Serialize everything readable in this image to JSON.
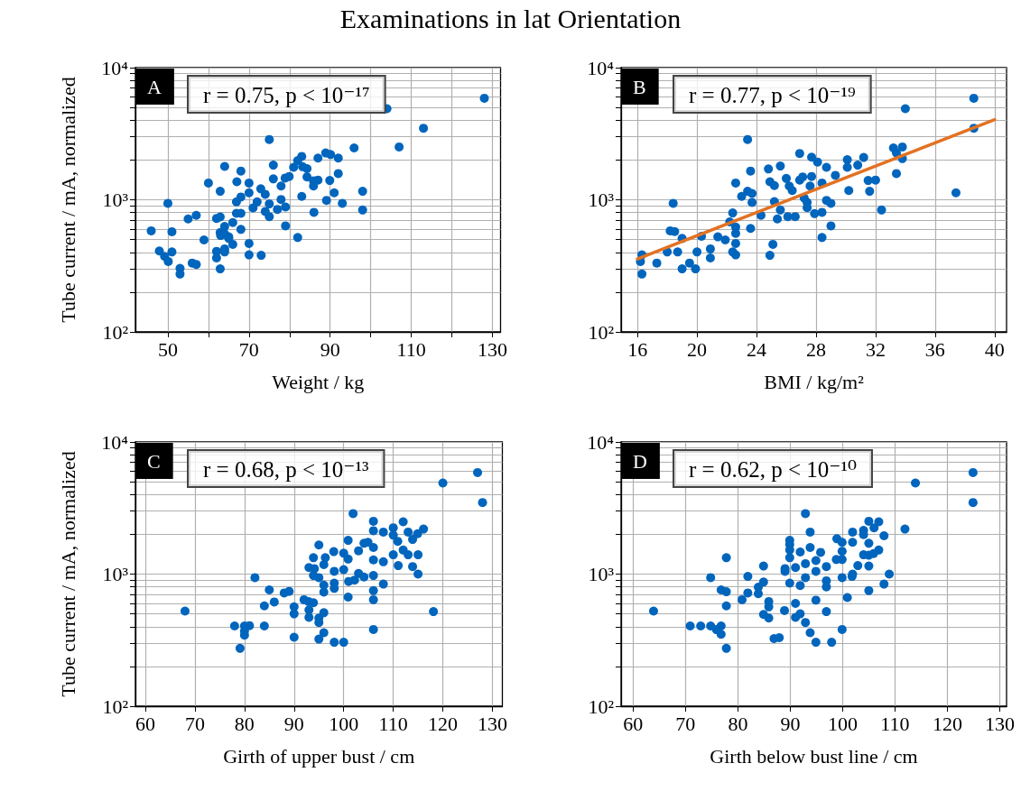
{
  "chart_data": [
    {
      "type": "scatter",
      "title": "Examinations in lat Orientation",
      "xlabel": "Weight / kg",
      "ylabel": "Tube current / mA, normalized",
      "annotations": [
        "A",
        "r = 0.75, p < 10⁻¹⁷"
      ],
      "x": [
        128,
        104,
        113,
        75,
        95.9,
        107,
        88.9,
        90.1,
        87,
        92,
        83,
        82,
        76,
        64,
        81,
        68,
        84.3,
        83.2,
        92,
        79.9,
        78.9,
        84.3,
        76,
        60,
        67,
        70,
        85.9,
        87,
        89.9,
        77.9,
        85.9,
        72.9,
        62.9,
        70,
        74,
        68,
        83,
        91,
        98,
        50,
        66.9,
        77.9,
        72,
        89.1,
        93,
        75,
        71,
        74,
        77,
        79,
        66.9,
        68,
        75,
        86,
        98,
        57,
        55,
        62,
        62.9,
        66,
        64,
        79,
        68,
        45.9,
        51,
        62.9,
        64,
        65,
        58.9,
        82,
        66,
        70,
        47.9,
        51,
        62,
        64,
        49.2,
        50.1,
        62,
        64,
        70,
        73,
        56,
        57,
        53,
        62.9,
        53,
        63,
        65
      ],
      "values": [
        5870,
        4890,
        3480,
        2860,
        2470,
        2510,
        2260,
        2200,
        2070,
        2070,
        2130,
        1980,
        1830,
        1790,
        1760,
        1650,
        1720,
        1780,
        1580,
        1500,
        1460,
        1490,
        1440,
        1340,
        1370,
        1340,
        1390,
        1410,
        1400,
        1270,
        1270,
        1210,
        1160,
        1130,
        1100,
        1050,
        1060,
        1130,
        1160,
        940,
        964,
        1005,
        964,
        990,
        940,
        930,
        868,
        816,
        846,
        882,
        790,
        790,
        746,
        804,
        837,
        762,
        716,
        723,
        742,
        672,
        628,
        635,
        597,
        582,
        573,
        566,
        552,
        510,
        497,
        518,
        460,
        467,
        410,
        403,
        407,
        425,
        373,
        341,
        363,
        403,
        383,
        380,
        332,
        324,
        303,
        300,
        274,
        537,
        524
      ],
      "color": "#0065bd",
      "marker": "circle",
      "log": "y",
      "grid": true,
      "xlim": [
        42,
        132
      ],
      "ylim": [
        100,
        10000
      ],
      "xticks": [
        50,
        {
          "value": 60,
          "label": null
        },
        70,
        {
          "value": 80,
          "label": null
        },
        90,
        {
          "value": 100,
          "label": null
        },
        110,
        {
          "value": 120,
          "label": null
        },
        130
      ],
      "yticks": [
        {
          "value": 100,
          "label": "10²"
        },
        {
          "value": 200,
          "label": null
        },
        {
          "value": 300,
          "label": null
        },
        {
          "value": 400,
          "label": null
        },
        {
          "value": 500,
          "label": null
        },
        {
          "value": 600,
          "label": null
        },
        {
          "value": 700,
          "label": null
        },
        {
          "value": 800,
          "label": null
        },
        {
          "value": 900,
          "label": null
        },
        {
          "value": 1000,
          "label": "10³"
        },
        {
          "value": 2000,
          "label": null
        },
        {
          "value": 3000,
          "label": null
        },
        {
          "value": 4000,
          "label": null
        },
        {
          "value": 5000,
          "label": null
        },
        {
          "value": 6000,
          "label": null
        },
        {
          "value": 7000,
          "label": null
        },
        {
          "value": 8000,
          "label": null
        },
        {
          "value": 9000,
          "label": null
        },
        {
          "value": 10000,
          "label": "10⁴"
        }
      ]
    },
    {
      "type": "scatter",
      "xlabel": "BMI / kg/m²",
      "annotations": [
        "B",
        "r = 0.77, p < 10⁻¹⁹"
      ],
      "series": [
        {
          "color": "#0065bd",
          "x": [
            38.6,
            34,
            38.6,
            23.4,
            33.2,
            33.8,
            33.4,
            33.8,
            26.9,
            27.7,
            28.1,
            30.1,
            31.2,
            30.8,
            30.1,
            28.7,
            25.6,
            24.8,
            23.6,
            29.3,
            26,
            27.1,
            27.7,
            26.9,
            33.4,
            31.5,
            32,
            22.6,
            24.9,
            25.2,
            28.4,
            27.6,
            26.2,
            26.4,
            23.4,
            23.7,
            23,
            30.2,
            31.6,
            37.4,
            18.4,
            23.7,
            25.2,
            27.2,
            27.4,
            28.7,
            29,
            27.4,
            25.6,
            32.4,
            22.4,
            24.3,
            25.4,
            26.1,
            26.6,
            27.9,
            28.4,
            22.2,
            22.6,
            23.6,
            29,
            18.2,
            18.5,
            22.6,
            19,
            20.3,
            21.4,
            21.9,
            22.6,
            25.1,
            28.4,
            16.3,
            18,
            18.7,
            20,
            20.9,
            22.4,
            22.6,
            24.9,
            16.2,
            17.3,
            19.5,
            20.9,
            19,
            19.9,
            16.3
          ],
          "values": [
            5870,
            4890,
            3480,
            2860,
            2470,
            2510,
            2260,
            2050,
            2240,
            2100,
            1930,
            2010,
            2090,
            1830,
            1760,
            1760,
            1800,
            1710,
            1650,
            1530,
            1450,
            1490,
            1500,
            1410,
            1580,
            1400,
            1410,
            1340,
            1370,
            1280,
            1340,
            1270,
            1270,
            1175,
            1160,
            1116,
            1060,
            1175,
            1160,
            1130,
            940,
            955,
            969,
            1030,
            955,
            990,
            940,
            873,
            837,
            837,
            795,
            762,
            716,
            746,
            746,
            786,
            804,
            680,
            622,
            607,
            635,
            582,
            575,
            557,
            510,
            529,
            524,
            497,
            467,
            460,
            518,
            383,
            403,
            403,
            403,
            425,
            403,
            383,
            380,
            341,
            332,
            332,
            363,
            300,
            300,
            274
          ]
        },
        {
          "type": "line",
          "color": "#e37222",
          "marker": "none",
          "x": [
            16,
            40
          ],
          "values": [
            357,
            4035
          ]
        }
      ],
      "marker": "circle",
      "log": "y",
      "grid": true,
      "xlim": [
        14.9,
        40.8
      ],
      "ylim": [
        100,
        10000
      ],
      "xticks": [
        16,
        20,
        24,
        28,
        32,
        36,
        40
      ],
      "yticks": [
        {
          "value": 100,
          "label": "10²"
        },
        {
          "value": 200,
          "label": null
        },
        {
          "value": 300,
          "label": null
        },
        {
          "value": 400,
          "label": null
        },
        {
          "value": 500,
          "label": null
        },
        {
          "value": 600,
          "label": null
        },
        {
          "value": 700,
          "label": null
        },
        {
          "value": 800,
          "label": null
        },
        {
          "value": 900,
          "label": null
        },
        {
          "value": 1000,
          "label": "10³"
        },
        {
          "value": 2000,
          "label": null
        },
        {
          "value": 3000,
          "label": null
        },
        {
          "value": 4000,
          "label": null
        },
        {
          "value": 5000,
          "label": null
        },
        {
          "value": 6000,
          "label": null
        },
        {
          "value": 7000,
          "label": null
        },
        {
          "value": 8000,
          "label": null
        },
        {
          "value": 9000,
          "label": null
        },
        {
          "value": 10000,
          "label": "10⁴"
        }
      ]
    },
    {
      "type": "scatter",
      "xlabel": "Girth of upper bust / cm",
      "ylabel": "Tube current / mA, normalized",
      "annotations": [
        "C",
        "r = 0.68, p < 10⁻¹³"
      ],
      "x": [
        127,
        120,
        128,
        101.9,
        106,
        112,
        110,
        106,
        108,
        113,
        116.1,
        114.9,
        110,
        113.9,
        110.9,
        100.9,
        95,
        104.1,
        104.9,
        106,
        103,
        112,
        98,
        100,
        96.3,
        93.9,
        100.9,
        110,
        113,
        115,
        106,
        108,
        96,
        93,
        94.1,
        111,
        113.9,
        98.1,
        100,
        103,
        104.1,
        106,
        115,
        93.9,
        95,
        82.1,
        101,
        102.2,
        98.1,
        96,
        108,
        98.1,
        96,
        106,
        85,
        88,
        89,
        100.9,
        92,
        106,
        92.9,
        93.9,
        86,
        84,
        90,
        93,
        68,
        90,
        96,
        95,
        93,
        118.1,
        95,
        78,
        80,
        81,
        84,
        80,
        80,
        106,
        96,
        90,
        95,
        98.1,
        100,
        79.1
      ],
      "values": [
        5870,
        4890,
        3480,
        2870,
        2510,
        2490,
        2240,
        2130,
        2080,
        2080,
        2190,
        2020,
        1970,
        1830,
        1770,
        1800,
        1660,
        1710,
        1740,
        1590,
        1500,
        1520,
        1480,
        1440,
        1330,
        1330,
        1300,
        1400,
        1400,
        1400,
        1280,
        1240,
        1180,
        1120,
        1100,
        1160,
        1140,
        1050,
        1080,
        1010,
        950,
        975,
        1000,
        975,
        940,
        940,
        880,
        900,
        855,
        825,
        840,
        780,
        730,
        750,
        760,
        720,
        740,
        670,
        640,
        640,
        620,
        607,
        615,
        575,
        565,
        535,
        525,
        500,
        510,
        465,
        470,
        520,
        430,
        405,
        405,
        407,
        405,
        370,
        345,
        381,
        360,
        333,
        322,
        305,
        305,
        274
      ],
      "color": "#0065bd",
      "marker": "circle",
      "log": "y",
      "grid": true,
      "xlim": [
        58,
        132
      ],
      "ylim": [
        100,
        10000
      ],
      "xticks": [
        60,
        70,
        80,
        90,
        100,
        110,
        120,
        130
      ],
      "yticks": [
        {
          "value": 100,
          "label": "10²"
        },
        {
          "value": 200,
          "label": null
        },
        {
          "value": 300,
          "label": null
        },
        {
          "value": 400,
          "label": null
        },
        {
          "value": 500,
          "label": null
        },
        {
          "value": 600,
          "label": null
        },
        {
          "value": 700,
          "label": null
        },
        {
          "value": 800,
          "label": null
        },
        {
          "value": 900,
          "label": null
        },
        {
          "value": 1000,
          "label": "10³"
        },
        {
          "value": 2000,
          "label": null
        },
        {
          "value": 3000,
          "label": null
        },
        {
          "value": 4000,
          "label": null
        },
        {
          "value": 5000,
          "label": null
        },
        {
          "value": 6000,
          "label": null
        },
        {
          "value": 7000,
          "label": null
        },
        {
          "value": 8000,
          "label": null
        },
        {
          "value": 9000,
          "label": null
        },
        {
          "value": 10000,
          "label": "10⁴"
        }
      ]
    },
    {
      "type": "scatter",
      "xlabel": "Girth below bust line / cm",
      "annotations": [
        "D",
        "r = 0.62, p < 10⁻¹⁰"
      ],
      "x": [
        124.9,
        113.9,
        124.9,
        92.9,
        105,
        106.9,
        106,
        111.9,
        101.9,
        104,
        104,
        107.9,
        93.8,
        89.9,
        98.9,
        99.9,
        101.9,
        105,
        89.9,
        93.8,
        89.9,
        91.9,
        95.8,
        99.9,
        106.9,
        105.9,
        104,
        105,
        77.8,
        89.9,
        98.8,
        99.9,
        94.9,
        92.9,
        102.9,
        105,
        84.9,
        96.9,
        91,
        89,
        89,
        94.9,
        108.9,
        101.9,
        74.8,
        81.9,
        92.9,
        99.9,
        101.8,
        96.9,
        84.9,
        89.9,
        91.9,
        96.9,
        107.9,
        83.9,
        76.8,
        77.8,
        81.9,
        83.9,
        105,
        100.9,
        80.8,
        94.9,
        85.9,
        91,
        77.8,
        85.9,
        63.9,
        88.9,
        96.9,
        84.9,
        91.9,
        85.9,
        91,
        92.9,
        70.9,
        72.9,
        74.8,
        76.8,
        75.9,
        76.8,
        93.8,
        99.9,
        86.9,
        87.9,
        94.9,
        97.9,
        77.8
      ],
      "values": [
        5870,
        4890,
        3480,
        2870,
        2510,
        2490,
        2240,
        2190,
        2080,
        2140,
        1990,
        1950,
        2080,
        1800,
        1850,
        1740,
        1740,
        1710,
        1670,
        1590,
        1520,
        1470,
        1460,
        1490,
        1520,
        1430,
        1400,
        1390,
        1330,
        1330,
        1290,
        1290,
        1265,
        1200,
        1160,
        1150,
        1150,
        1140,
        1120,
        1100,
        1050,
        1050,
        1000,
        1000,
        940,
        960,
        940,
        940,
        960,
        890,
        870,
        855,
        820,
        800,
        840,
        795,
        760,
        735,
        720,
        710,
        750,
        665,
        640,
        635,
        620,
        600,
        575,
        565,
        525,
        530,
        520,
        495,
        500,
        465,
        470,
        430,
        405,
        405,
        405,
        405,
        380,
        350,
        360,
        381,
        325,
        330,
        305,
        305,
        274
      ],
      "color": "#0065bd",
      "marker": "circle",
      "log": "y",
      "grid": true,
      "xlim": [
        57.7,
        131.3
      ],
      "ylim": [
        100,
        10000
      ],
      "xticks": [
        60,
        70,
        80,
        90,
        100,
        110,
        120,
        130
      ],
      "yticks": [
        {
          "value": 100,
          "label": "10²"
        },
        {
          "value": 200,
          "label": null
        },
        {
          "value": 300,
          "label": null
        },
        {
          "value": 400,
          "label": null
        },
        {
          "value": 500,
          "label": null
        },
        {
          "value": 600,
          "label": null
        },
        {
          "value": 700,
          "label": null
        },
        {
          "value": 800,
          "label": null
        },
        {
          "value": 900,
          "label": null
        },
        {
          "value": 1000,
          "label": "10³"
        },
        {
          "value": 2000,
          "label": null
        },
        {
          "value": 3000,
          "label": null
        },
        {
          "value": 4000,
          "label": null
        },
        {
          "value": 5000,
          "label": null
        },
        {
          "value": 6000,
          "label": null
        },
        {
          "value": 7000,
          "label": null
        },
        {
          "value": 8000,
          "label": null
        },
        {
          "value": 9000,
          "label": null
        },
        {
          "value": 10000,
          "label": "10⁴"
        }
      ]
    }
  ]
}
